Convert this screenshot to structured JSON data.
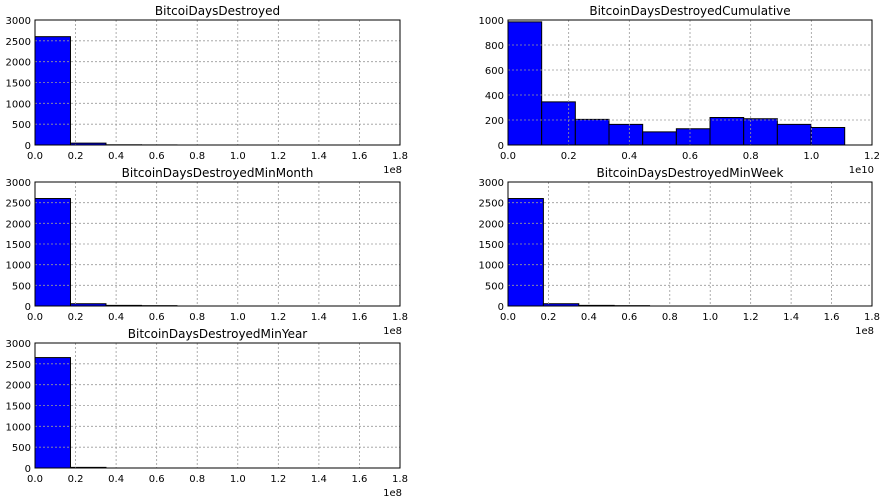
{
  "chart_data": [
    {
      "type": "bar",
      "title": "BitcoiDaysDestroyed",
      "xlim": [
        0,
        1.8
      ],
      "ylim": [
        0,
        3000
      ],
      "x_offset_label": "1e8",
      "xticks": [
        "0.0",
        "0.2",
        "0.4",
        "0.6",
        "0.8",
        "1.0",
        "1.2",
        "1.4",
        "1.6",
        "1.8"
      ],
      "yticks": [
        "0",
        "500",
        "1000",
        "1500",
        "2000",
        "2500",
        "3000"
      ],
      "grid": true,
      "bins": [
        {
          "x0": 0.0,
          "x1": 0.175,
          "count": 2600
        },
        {
          "x0": 0.175,
          "x1": 0.35,
          "count": 45
        },
        {
          "x0": 0.35,
          "x1": 0.525,
          "count": 5
        },
        {
          "x0": 0.525,
          "x1": 0.7,
          "count": 2
        }
      ]
    },
    {
      "type": "bar",
      "title": "BitcoinDaysDestroyedCumulative",
      "xlim": [
        0,
        1.2
      ],
      "ylim": [
        0,
        1000
      ],
      "x_offset_label": "1e10",
      "xticks": [
        "0.0",
        "0.2",
        "0.4",
        "0.6",
        "0.8",
        "1.0",
        "1.2"
      ],
      "yticks": [
        "0",
        "200",
        "400",
        "600",
        "800",
        "1000"
      ],
      "grid": true,
      "bins": [
        {
          "x0": 0.0,
          "x1": 0.111,
          "count": 985
        },
        {
          "x0": 0.111,
          "x1": 0.222,
          "count": 345
        },
        {
          "x0": 0.222,
          "x1": 0.333,
          "count": 205
        },
        {
          "x0": 0.333,
          "x1": 0.444,
          "count": 165
        },
        {
          "x0": 0.444,
          "x1": 0.555,
          "count": 105
        },
        {
          "x0": 0.555,
          "x1": 0.666,
          "count": 130
        },
        {
          "x0": 0.666,
          "x1": 0.777,
          "count": 220
        },
        {
          "x0": 0.777,
          "x1": 0.888,
          "count": 210
        },
        {
          "x0": 0.888,
          "x1": 0.999,
          "count": 165
        },
        {
          "x0": 0.999,
          "x1": 1.11,
          "count": 140
        }
      ]
    },
    {
      "type": "bar",
      "title": "BitcoinDaysDestroyedMinMonth",
      "xlim": [
        0,
        1.8
      ],
      "ylim": [
        0,
        3000
      ],
      "x_offset_label": "1e8",
      "xticks": [
        "0.0",
        "0.2",
        "0.4",
        "0.6",
        "0.8",
        "1.0",
        "1.2",
        "1.4",
        "1.6",
        "1.8"
      ],
      "yticks": [
        "0",
        "500",
        "1000",
        "1500",
        "2000",
        "2500",
        "3000"
      ],
      "grid": true,
      "bins": [
        {
          "x0": 0.0,
          "x1": 0.175,
          "count": 2600
        },
        {
          "x0": 0.175,
          "x1": 0.35,
          "count": 55
        },
        {
          "x0": 0.35,
          "x1": 0.525,
          "count": 15
        },
        {
          "x0": 0.525,
          "x1": 0.7,
          "count": 8
        }
      ]
    },
    {
      "type": "bar",
      "title": "BitcoinDaysDestroyedMinWeek",
      "xlim": [
        0,
        1.8
      ],
      "ylim": [
        0,
        3000
      ],
      "x_offset_label": "1e8",
      "xticks": [
        "0.0",
        "0.2",
        "0.4",
        "0.6",
        "0.8",
        "1.0",
        "1.2",
        "1.4",
        "1.6",
        "1.8"
      ],
      "yticks": [
        "0",
        "500",
        "1000",
        "1500",
        "2000",
        "2500",
        "3000"
      ],
      "grid": true,
      "bins": [
        {
          "x0": 0.0,
          "x1": 0.175,
          "count": 2600
        },
        {
          "x0": 0.175,
          "x1": 0.35,
          "count": 55
        },
        {
          "x0": 0.35,
          "x1": 0.525,
          "count": 15
        },
        {
          "x0": 0.525,
          "x1": 0.7,
          "count": 8
        }
      ]
    },
    {
      "type": "bar",
      "title": "BitcoinDaysDestroyedMinYear",
      "xlim": [
        0,
        1.8
      ],
      "ylim": [
        0,
        3000
      ],
      "x_offset_label": "1e8",
      "xticks": [
        "0.0",
        "0.2",
        "0.4",
        "0.6",
        "0.8",
        "1.0",
        "1.2",
        "1.4",
        "1.6",
        "1.8"
      ],
      "yticks": [
        "0",
        "500",
        "1000",
        "1500",
        "2000",
        "2500",
        "3000"
      ],
      "grid": true,
      "bins": [
        {
          "x0": 0.0,
          "x1": 0.175,
          "count": 2650
        },
        {
          "x0": 0.175,
          "x1": 0.35,
          "count": 15
        }
      ]
    }
  ],
  "colors": {
    "bar_fill": "#0000ff",
    "bar_edge": "#000000",
    "grid": "#9a9a9a",
    "background": "#ffffff"
  }
}
